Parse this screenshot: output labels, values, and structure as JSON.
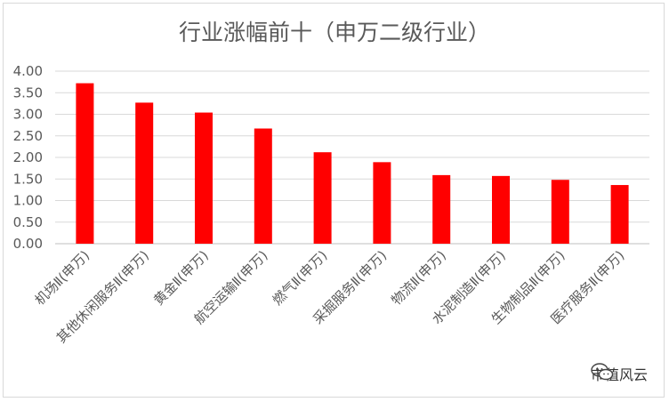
{
  "chart_data": {
    "type": "bar",
    "title": "行业涨幅前十（申万二级行业）",
    "categories": [
      "机场Ⅱ(申万)",
      "其他休闲服务Ⅱ(申万)",
      "黄金Ⅱ(申万)",
      "航空运输Ⅱ(申万)",
      "燃气Ⅱ(申万)",
      "采掘服务Ⅱ(申万)",
      "物流Ⅱ(申万)",
      "水泥制造Ⅱ(申万)",
      "生物制品Ⅱ(申万)",
      "医疗服务Ⅱ(申万)"
    ],
    "values": [
      3.72,
      3.27,
      3.04,
      2.67,
      2.12,
      1.89,
      1.59,
      1.57,
      1.48,
      1.36
    ],
    "ylim": [
      0,
      4
    ],
    "yticks": [
      "0.00",
      "0.50",
      "1.00",
      "1.50",
      "2.00",
      "2.50",
      "3.00",
      "3.50",
      "4.00"
    ],
    "grid": true,
    "bar_color": "#ff0000"
  },
  "watermark": {
    "text": "市值风云",
    "icon": "wechat-icon"
  }
}
